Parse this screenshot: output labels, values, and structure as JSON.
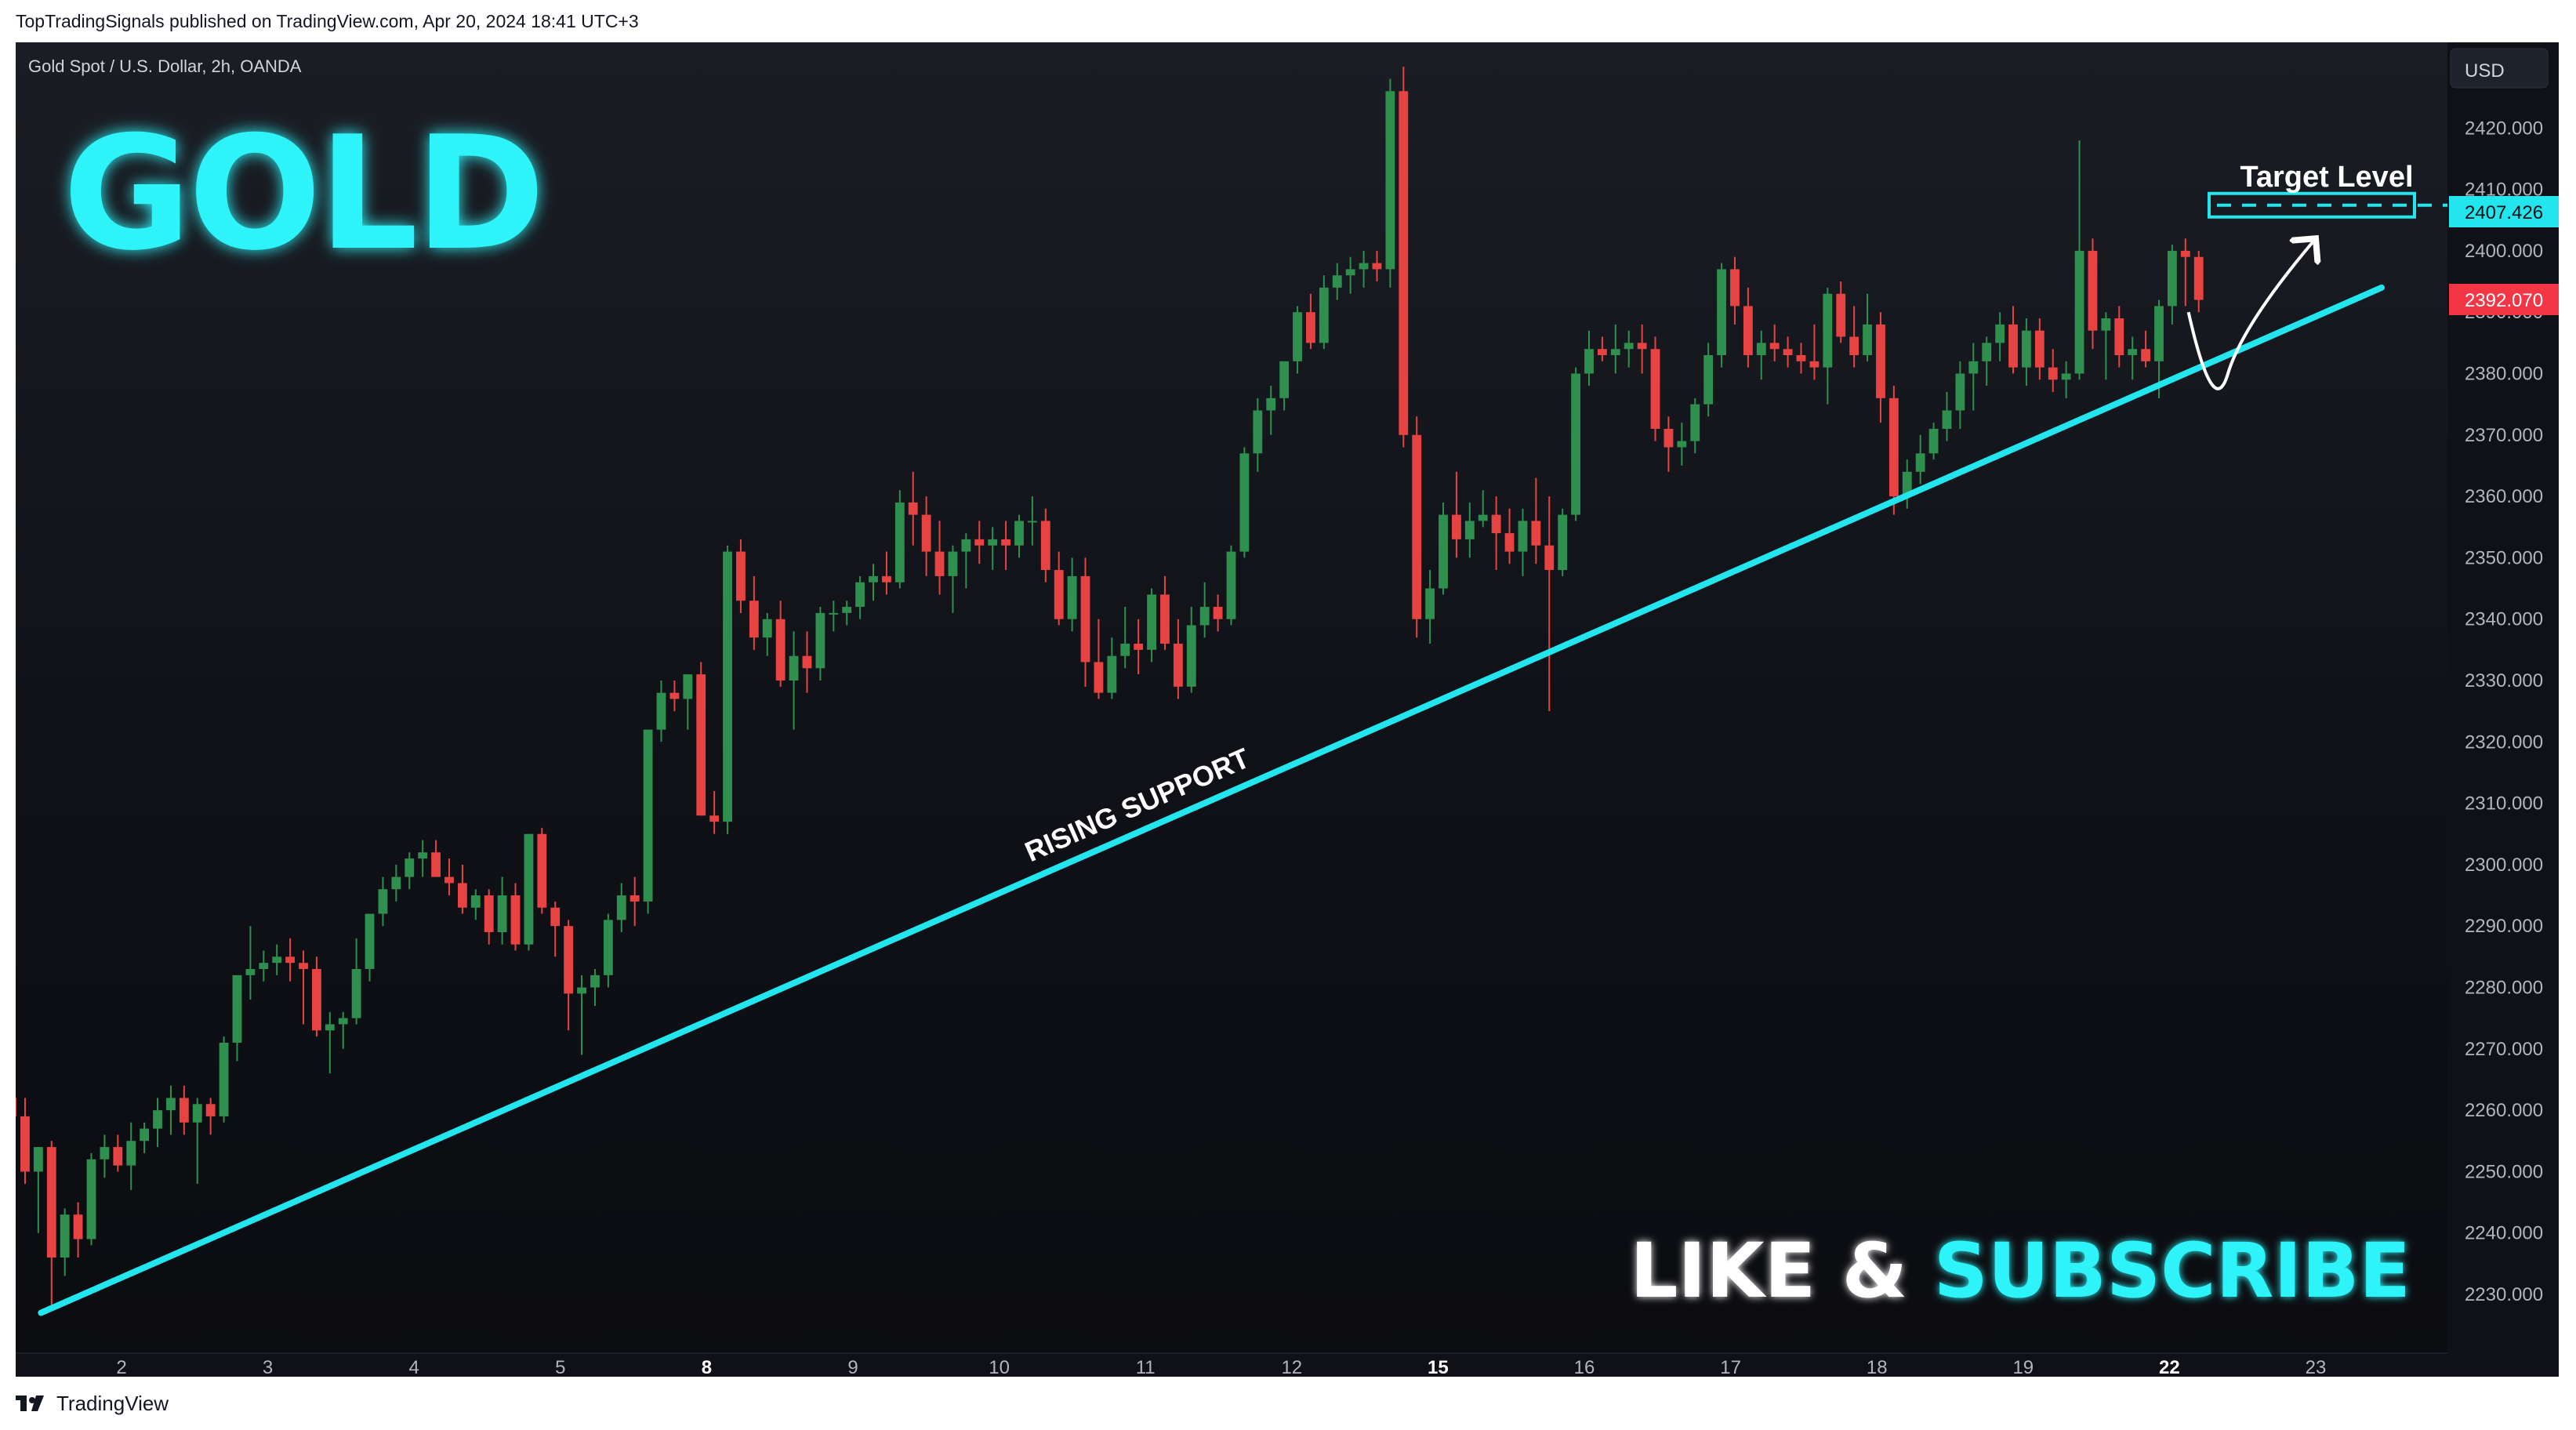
{
  "header": {
    "published": "TopTradingSignals published on TradingView.com, Apr 20, 2024 18:41 UTC+3"
  },
  "symbol_label": "Gold Spot / U.S. Dollar, 2h, OANDA",
  "currency_button": "USD",
  "overlay": {
    "title": "GOLD",
    "support_label": "RISING SUPPORT",
    "target_label": "Target Level",
    "cta_white": "LIKE & ",
    "cta_cyan": "SUBSCRIBE"
  },
  "price_tags": {
    "target": "2407.426",
    "current": "2392.070"
  },
  "footer": {
    "brand": "TradingView"
  },
  "colors": {
    "background": "#0f1117",
    "up_candle": "#2f8f4e",
    "down_candle": "#e84343",
    "cyan": "#22e5ee",
    "axis_text": "#b2b5be",
    "current_tag": "#f23645"
  },
  "chart_data": {
    "type": "candlestick",
    "title": "Gold Spot / U.S. Dollar, 2h, OANDA",
    "ylim": [
      2224,
      2432
    ],
    "y_ticks": [
      "2420.000",
      "2410.000",
      "2400.000",
      "2390.000",
      "2380.000",
      "2370.000",
      "2360.000",
      "2350.000",
      "2340.000",
      "2330.000",
      "2320.000",
      "2310.000",
      "2300.000",
      "2290.000",
      "2280.000",
      "2270.000",
      "2260.000",
      "2250.000",
      "2240.000",
      "2230.000"
    ],
    "x_ticks": [
      {
        "label": "2",
        "t": 1.75
      },
      {
        "label": "3",
        "t": 2.75
      },
      {
        "label": "4",
        "t": 3.75
      },
      {
        "label": "5",
        "t": 4.75
      },
      {
        "label": "8",
        "t": 5.75
      },
      {
        "label": "9",
        "t": 6.75
      },
      {
        "label": "10",
        "t": 7.75
      },
      {
        "label": "11",
        "t": 8.75
      },
      {
        "label": "12",
        "t": 9.75
      },
      {
        "label": "15",
        "t": 10.75
      },
      {
        "label": "16",
        "t": 11.75
      },
      {
        "label": "17",
        "t": 12.75
      },
      {
        "label": "18",
        "t": 13.75
      },
      {
        "label": "19",
        "t": 14.75
      },
      {
        "label": "22",
        "t": 15.75
      },
      {
        "label": "23",
        "t": 16.75
      }
    ],
    "x_domain": [
      1,
      17.5
    ],
    "ohlc": [
      [
        2262,
        2263,
        2256,
        2259
      ],
      [
        2259,
        2262,
        2248,
        2250
      ],
      [
        2250,
        2254,
        2240,
        2254
      ],
      [
        2254,
        2255,
        2228,
        2236
      ],
      [
        2236,
        2244,
        2233,
        2243
      ],
      [
        2243,
        2245,
        2236,
        2239
      ],
      [
        2239,
        2253,
        2238,
        2252
      ],
      [
        2252,
        2256,
        2249,
        2254
      ],
      [
        2254,
        2256,
        2250,
        2251
      ],
      [
        2251,
        2258,
        2247,
        2255
      ],
      [
        2255,
        2258,
        2253,
        2257
      ],
      [
        2257,
        2262,
        2254,
        2260
      ],
      [
        2260,
        2264,
        2256,
        2262
      ],
      [
        2262,
        2264,
        2256,
        2258
      ],
      [
        2258,
        2262,
        2248,
        2261
      ],
      [
        2261,
        2262,
        2256,
        2259
      ],
      [
        2259,
        2272,
        2258,
        2271
      ],
      [
        2271,
        2282,
        2268,
        2282
      ],
      [
        2282,
        2290,
        2278,
        2283
      ],
      [
        2283,
        2286,
        2281,
        2284
      ],
      [
        2284,
        2287,
        2282,
        2285
      ],
      [
        2285,
        2288,
        2281,
        2284
      ],
      [
        2284,
        2286,
        2274,
        2283
      ],
      [
        2283,
        2285,
        2272,
        2273
      ],
      [
        2273,
        2276,
        2266,
        2274
      ],
      [
        2274,
        2276,
        2270,
        2275
      ],
      [
        2275,
        2288,
        2274,
        2283
      ],
      [
        2283,
        2292,
        2281,
        2292
      ],
      [
        2292,
        2298,
        2290,
        2296
      ],
      [
        2296,
        2300,
        2294,
        2298
      ],
      [
        2298,
        2302,
        2296,
        2301
      ],
      [
        2301,
        2304,
        2298,
        2302
      ],
      [
        2302,
        2304,
        2298,
        2298
      ],
      [
        2298,
        2301,
        2295,
        2297
      ],
      [
        2297,
        2300,
        2292,
        2293
      ],
      [
        2293,
        2296,
        2291,
        2295
      ],
      [
        2295,
        2296,
        2287,
        2289
      ],
      [
        2289,
        2298,
        2287,
        2295
      ],
      [
        2295,
        2297,
        2286,
        2287
      ],
      [
        2287,
        2305,
        2286,
        2305
      ],
      [
        2305,
        2306,
        2292,
        2293
      ],
      [
        2293,
        2294,
        2285,
        2290
      ],
      [
        2290,
        2291,
        2273,
        2279
      ],
      [
        2279,
        2282,
        2269,
        2280
      ],
      [
        2280,
        2283,
        2277,
        2282
      ],
      [
        2282,
        2292,
        2280,
        2291
      ],
      [
        2291,
        2297,
        2289,
        2295
      ],
      [
        2295,
        2298,
        2290,
        2294
      ],
      [
        2294,
        2322,
        2292,
        2322
      ],
      [
        2322,
        2330,
        2320,
        2328
      ],
      [
        2328,
        2330,
        2325,
        2327
      ],
      [
        2327,
        2331,
        2322,
        2331
      ],
      [
        2331,
        2333,
        2308,
        2308
      ],
      [
        2308,
        2312,
        2305,
        2307
      ],
      [
        2307,
        2352,
        2305,
        2351
      ],
      [
        2351,
        2353,
        2341,
        2343
      ],
      [
        2343,
        2347,
        2335,
        2337
      ],
      [
        2337,
        2341,
        2334,
        2340
      ],
      [
        2340,
        2343,
        2329,
        2330
      ],
      [
        2330,
        2338,
        2322,
        2334
      ],
      [
        2334,
        2338,
        2328,
        2332
      ],
      [
        2332,
        2342,
        2330,
        2341
      ],
      [
        2341,
        2343,
        2338,
        2341
      ],
      [
        2341,
        2343,
        2339,
        2342
      ],
      [
        2342,
        2347,
        2340,
        2346
      ],
      [
        2346,
        2349,
        2343,
        2347
      ],
      [
        2347,
        2351,
        2344,
        2346
      ],
      [
        2346,
        2361,
        2345,
        2359
      ],
      [
        2359,
        2364,
        2352,
        2357
      ],
      [
        2357,
        2360,
        2347,
        2351
      ],
      [
        2351,
        2356,
        2344,
        2347
      ],
      [
        2347,
        2352,
        2341,
        2351
      ],
      [
        2351,
        2354,
        2345,
        2353
      ],
      [
        2353,
        2356,
        2349,
        2352
      ],
      [
        2352,
        2355,
        2348,
        2353
      ],
      [
        2353,
        2356,
        2348,
        2352
      ],
      [
        2352,
        2357,
        2350,
        2356
      ],
      [
        2356,
        2360,
        2352,
        2356
      ],
      [
        2356,
        2358,
        2346,
        2348
      ],
      [
        2348,
        2351,
        2339,
        2340
      ],
      [
        2340,
        2350,
        2338,
        2347
      ],
      [
        2347,
        2350,
        2329,
        2333
      ],
      [
        2333,
        2340,
        2327,
        2328
      ],
      [
        2328,
        2337,
        2327,
        2334
      ],
      [
        2334,
        2342,
        2332,
        2336
      ],
      [
        2336,
        2340,
        2331,
        2335
      ],
      [
        2335,
        2345,
        2333,
        2344
      ],
      [
        2344,
        2347,
        2335,
        2336
      ],
      [
        2336,
        2340,
        2327,
        2329
      ],
      [
        2329,
        2342,
        2328,
        2339
      ],
      [
        2339,
        2346,
        2337,
        2342
      ],
      [
        2342,
        2344,
        2338,
        2340
      ],
      [
        2340,
        2352,
        2339,
        2351
      ],
      [
        2351,
        2368,
        2350,
        2367
      ],
      [
        2367,
        2376,
        2364,
        2374
      ],
      [
        2374,
        2378,
        2370,
        2376
      ],
      [
        2376,
        2382,
        2374,
        2382
      ],
      [
        2382,
        2391,
        2380,
        2390
      ],
      [
        2390,
        2393,
        2384,
        2385
      ],
      [
        2385,
        2396,
        2384,
        2394
      ],
      [
        2394,
        2398,
        2392,
        2396
      ],
      [
        2396,
        2399,
        2393,
        2397
      ],
      [
        2397,
        2400,
        2394,
        2398
      ],
      [
        2398,
        2400,
        2395,
        2397
      ],
      [
        2397,
        2428,
        2394,
        2426
      ],
      [
        2426,
        2430,
        2368,
        2370
      ],
      [
        2370,
        2373,
        2337,
        2340
      ],
      [
        2340,
        2348,
        2336,
        2345
      ],
      [
        2345,
        2359,
        2344,
        2357
      ],
      [
        2357,
        2364,
        2350,
        2353
      ],
      [
        2353,
        2359,
        2350,
        2356
      ],
      [
        2356,
        2361,
        2355,
        2357
      ],
      [
        2357,
        2360,
        2348,
        2354
      ],
      [
        2354,
        2358,
        2349,
        2351
      ],
      [
        2351,
        2358,
        2347,
        2356
      ],
      [
        2356,
        2363,
        2349,
        2352
      ],
      [
        2352,
        2360,
        2325,
        2348
      ],
      [
        2348,
        2358,
        2347,
        2357
      ],
      [
        2357,
        2381,
        2356,
        2380
      ],
      [
        2380,
        2387,
        2378,
        2384
      ],
      [
        2384,
        2386,
        2382,
        2383
      ],
      [
        2383,
        2388,
        2380,
        2384
      ],
      [
        2384,
        2387,
        2381,
        2385
      ],
      [
        2385,
        2388,
        2380,
        2384
      ],
      [
        2384,
        2386,
        2369,
        2371
      ],
      [
        2371,
        2373,
        2364,
        2368
      ],
      [
        2368,
        2372,
        2365,
        2369
      ],
      [
        2369,
        2376,
        2367,
        2375
      ],
      [
        2375,
        2385,
        2373,
        2383
      ],
      [
        2383,
        2398,
        2381,
        2397
      ],
      [
        2397,
        2399,
        2388,
        2391
      ],
      [
        2391,
        2394,
        2381,
        2383
      ],
      [
        2383,
        2387,
        2379,
        2385
      ],
      [
        2385,
        2388,
        2382,
        2384
      ],
      [
        2384,
        2386,
        2381,
        2383
      ],
      [
        2383,
        2385,
        2380,
        2382
      ],
      [
        2382,
        2388,
        2379,
        2381
      ],
      [
        2381,
        2394,
        2375,
        2393
      ],
      [
        2393,
        2395,
        2385,
        2386
      ],
      [
        2386,
        2391,
        2381,
        2383
      ],
      [
        2383,
        2393,
        2382,
        2388
      ],
      [
        2388,
        2390,
        2372,
        2376
      ],
      [
        2376,
        2378,
        2357,
        2360
      ],
      [
        2360,
        2366,
        2358,
        2364
      ],
      [
        2364,
        2370,
        2362,
        2367
      ],
      [
        2367,
        2372,
        2366,
        2371
      ],
      [
        2371,
        2377,
        2369,
        2374
      ],
      [
        2374,
        2382,
        2371,
        2380
      ],
      [
        2380,
        2385,
        2374,
        2382
      ],
      [
        2382,
        2386,
        2378,
        2385
      ],
      [
        2385,
        2390,
        2382,
        2388
      ],
      [
        2388,
        2391,
        2380,
        2381
      ],
      [
        2381,
        2389,
        2378,
        2387
      ],
      [
        2387,
        2389,
        2379,
        2381
      ],
      [
        2381,
        2384,
        2377,
        2379
      ],
      [
        2379,
        2382,
        2376,
        2380
      ],
      [
        2380,
        2418,
        2379,
        2400
      ],
      [
        2400,
        2402,
        2384,
        2387
      ],
      [
        2387,
        2390,
        2379,
        2389
      ],
      [
        2389,
        2391,
        2381,
        2383
      ],
      [
        2383,
        2386,
        2379,
        2384
      ],
      [
        2384,
        2387,
        2381,
        2382
      ],
      [
        2382,
        2392,
        2376,
        2391
      ],
      [
        2391,
        2401,
        2388,
        2400
      ],
      [
        2400,
        2402,
        2391,
        2399
      ],
      [
        2399,
        2400,
        2390,
        2392
      ]
    ],
    "support_line": {
      "label": "RISING SUPPORT",
      "from": [
        1.2,
        2227
      ],
      "to": [
        17.2,
        2394
      ]
    },
    "target_level": {
      "label": "Target Level",
      "value": 2407.426,
      "t_from": 15.0,
      "t_to": 17.3
    },
    "current_price": 2392.07
  }
}
